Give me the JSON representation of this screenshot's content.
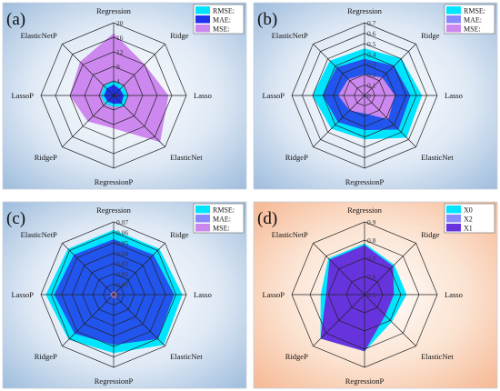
{
  "chart_data": [
    {
      "panel_letter": "(a)",
      "type": "radar",
      "background": "blue",
      "axes": [
        "Regression",
        "Ridge",
        "Lasso",
        "ElasticNet",
        "RegressionP",
        "RidgeP",
        "LassoP",
        "ElasticNetP"
      ],
      "ticks": [
        "20",
        "16",
        "12",
        "8",
        "4",
        "0"
      ],
      "rmax": 20,
      "series": [
        {
          "name": "MSE:",
          "color": "#cc88ee",
          "values": [
            17,
            12,
            15,
            18,
            9,
            10,
            12,
            13
          ]
        },
        {
          "name": "RMSE:",
          "color": "#00e5ff",
          "values": [
            4.1,
            3.5,
            3.9,
            4.2,
            3.0,
            3.2,
            3.5,
            3.6
          ]
        },
        {
          "name": "MAE:",
          "color": "#2233ee",
          "values": [
            2.9,
            2.4,
            2.7,
            3.0,
            2.2,
            2.3,
            2.6,
            2.6
          ]
        }
      ],
      "legend": [
        {
          "label": "RMSE:",
          "color": "#00e5ff"
        },
        {
          "label": "MAE:",
          "color": "#2233ee"
        },
        {
          "label": "MSE:",
          "color": "#cc88ee"
        }
      ]
    },
    {
      "panel_letter": "(b)",
      "type": "radar",
      "background": "blue",
      "axes": [
        "Regression",
        "Ridge",
        "Lasso",
        "ElasticNet",
        "RegressionP",
        "RidgeP",
        "LassoP",
        "ElasticNetP"
      ],
      "ticks": [
        "0.7",
        "0.6",
        "0.5",
        "0.4",
        "0.3",
        "0.2",
        "0.1",
        "0"
      ],
      "rmax": 0.7,
      "series": [
        {
          "name": "RMSE:",
          "color": "#00e5ff",
          "values": [
            0.45,
            0.5,
            0.55,
            0.57,
            0.42,
            0.45,
            0.5,
            0.47
          ]
        },
        {
          "name": "MAE:",
          "color": "#2255ee",
          "values": [
            0.35,
            0.4,
            0.44,
            0.46,
            0.33,
            0.36,
            0.4,
            0.38
          ]
        },
        {
          "name": "MSE:",
          "color": "#cc88ee",
          "values": [
            0.2,
            0.24,
            0.29,
            0.32,
            0.17,
            0.2,
            0.25,
            0.22
          ]
        }
      ],
      "legend": [
        {
          "label": "RMSE:",
          "color": "#00e5ff"
        },
        {
          "label": "MAE:",
          "color": "#8888ff"
        },
        {
          "label": "MSE:",
          "color": "#cc88ee"
        }
      ]
    },
    {
      "panel_letter": "(c)",
      "type": "radar",
      "background": "blue",
      "axes": [
        "Regression",
        "Ridge",
        "Lasso",
        "ElasticNet",
        "RegressionP",
        "RidgeP",
        "LassoP",
        "ElasticNetP"
      ],
      "ticks": [
        "0.07",
        "0.06",
        "0.05",
        "0.04",
        "0.03",
        "0.02",
        "0.01",
        "0"
      ],
      "rmax": 0.07,
      "series": [
        {
          "name": "RMSE:",
          "color": "#00e5ff",
          "values": [
            0.062,
            0.062,
            0.066,
            0.068,
            0.056,
            0.061,
            0.065,
            0.062
          ]
        },
        {
          "name": "MAE:",
          "color": "#2255ee",
          "values": [
            0.053,
            0.054,
            0.058,
            0.06,
            0.048,
            0.053,
            0.057,
            0.054
          ]
        },
        {
          "name": "MSE:",
          "color": "#cc88ee",
          "values": [
            0.003,
            0.003,
            0.003,
            0.004,
            0.003,
            0.003,
            0.003,
            0.003
          ]
        }
      ],
      "legend": [
        {
          "label": "RMSE:",
          "color": "#00e5ff"
        },
        {
          "label": "MAE:",
          "color": "#8888ff"
        },
        {
          "label": "MSE:",
          "color": "#cc88ee"
        }
      ]
    },
    {
      "panel_letter": "(d)",
      "type": "radar",
      "background": "orange",
      "axes": [
        "Regression",
        "Ridge",
        "Lasso",
        "ElasticNet",
        "RegressionP",
        "RidgeP",
        "LassoP",
        "ElasticNetP"
      ],
      "ticks": [
        "0.9",
        "0.8",
        "0.7",
        "0.6",
        "0.5"
      ],
      "rmin": 0.5,
      "rmax": 0.9,
      "series": [
        {
          "name": "X0",
          "color": "#00e5ff",
          "values": [
            0.78,
            0.73,
            0.73,
            0.71,
            0.81,
            0.84,
            0.74,
            0.78
          ]
        },
        {
          "name": "X1",
          "color": "#6633dd",
          "values": [
            0.77,
            0.72,
            0.66,
            0.66,
            0.81,
            0.84,
            0.71,
            0.77
          ]
        }
      ],
      "legend": [
        {
          "label": "X0",
          "color": "#00e5ff"
        },
        {
          "label": "X2",
          "color": "#8888ff"
        },
        {
          "label": "X1",
          "color": "#6633dd"
        }
      ]
    }
  ]
}
